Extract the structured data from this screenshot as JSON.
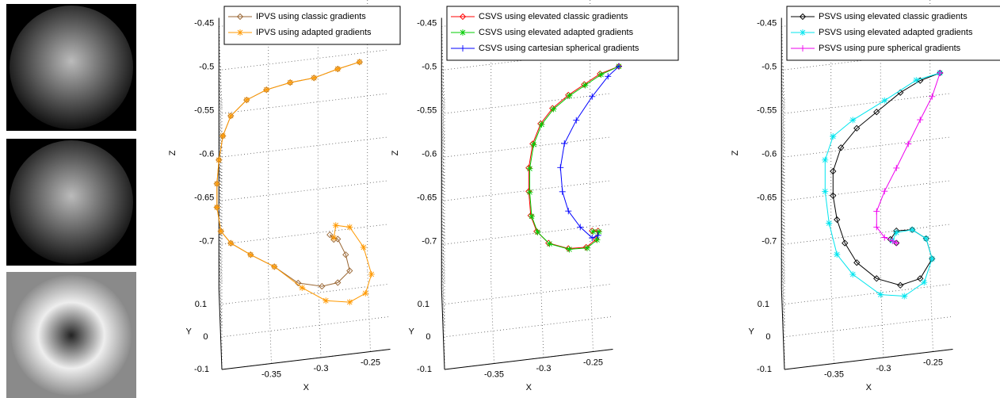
{
  "chart_data": [
    {
      "type": "line3d",
      "xlabel": "X",
      "ylabel": "Y",
      "zlabel": "Z",
      "xlim": [
        -0.4,
        -0.23
      ],
      "ylim": [
        -0.1,
        0.15
      ],
      "zlim": [
        -0.75,
        -0.44
      ],
      "xticks": [
        -0.35,
        -0.3,
        -0.25
      ],
      "yticks": [
        -0.1,
        0,
        0.1
      ],
      "zticks": [
        -0.7,
        -0.65,
        -0.6,
        -0.55,
        -0.5,
        -0.45
      ],
      "grid": true,
      "legend": "top-left",
      "series": [
        {
          "name": "IPVS using classic gradients",
          "color": "#996633",
          "marker": "diamond",
          "x": [
            -0.258,
            -0.28,
            -0.304,
            -0.328,
            -0.352,
            -0.372,
            -0.388,
            -0.396,
            -0.4,
            -0.402,
            -0.402,
            -0.398,
            -0.388,
            -0.368,
            -0.344,
            -0.32,
            -0.296,
            -0.28,
            -0.268,
            -0.272,
            -0.28,
            -0.288,
            -0.284
          ],
          "z": [
            -0.51,
            -0.515,
            -0.522,
            -0.524,
            -0.529,
            -0.538,
            -0.554,
            -0.576,
            -0.603,
            -0.63,
            -0.657,
            -0.685,
            -0.7,
            -0.716,
            -0.733,
            -0.755,
            -0.762,
            -0.76,
            -0.748,
            -0.729,
            -0.71,
            -0.704,
            -0.71
          ]
        },
        {
          "name": "IPVS using adapted gradients",
          "color": "#ff9900",
          "marker": "star",
          "x": [
            -0.258,
            -0.28,
            -0.304,
            -0.328,
            -0.352,
            -0.372,
            -0.388,
            -0.396,
            -0.4,
            -0.402,
            -0.402,
            -0.398,
            -0.388,
            -0.368,
            -0.344,
            -0.316,
            -0.292,
            -0.268,
            -0.252,
            -0.246,
            -0.254,
            -0.268,
            -0.282,
            -0.284
          ],
          "z": [
            -0.51,
            -0.515,
            -0.522,
            -0.524,
            -0.529,
            -0.538,
            -0.554,
            -0.576,
            -0.603,
            -0.63,
            -0.657,
            -0.685,
            -0.7,
            -0.716,
            -0.733,
            -0.761,
            -0.779,
            -0.784,
            -0.776,
            -0.755,
            -0.723,
            -0.698,
            -0.694,
            -0.708
          ]
        }
      ]
    },
    {
      "type": "line3d",
      "xlabel": "X",
      "ylabel": "Y",
      "zlabel": "Z",
      "xlim": [
        -0.4,
        -0.23
      ],
      "ylim": [
        -0.1,
        0.15
      ],
      "zlim": [
        -0.75,
        -0.44
      ],
      "xticks": [
        -0.35,
        -0.3,
        -0.25
      ],
      "yticks": [
        -0.1,
        0,
        0.1
      ],
      "zticks": [
        -0.7,
        -0.65,
        -0.6,
        -0.55,
        -0.5,
        -0.45
      ],
      "grid": true,
      "legend": "top-left",
      "series": [
        {
          "name": "CSVS using elevated classic gradients",
          "color": "#ff0000",
          "marker": "diamond",
          "x": [
            -0.221,
            -0.24,
            -0.256,
            -0.272,
            -0.288,
            -0.3,
            -0.308,
            -0.312,
            -0.312,
            -0.31,
            -0.304,
            -0.292,
            -0.272,
            -0.254,
            -0.244,
            -0.242,
            -0.248
          ],
          "z": [
            -0.52,
            -0.526,
            -0.536,
            -0.546,
            -0.559,
            -0.575,
            -0.597,
            -0.624,
            -0.651,
            -0.679,
            -0.698,
            -0.713,
            -0.722,
            -0.723,
            -0.715,
            -0.706,
            -0.705
          ]
        },
        {
          "name": "CSVS using elevated adapted gradients",
          "color": "#00cc00",
          "marker": "star",
          "x": [
            -0.221,
            -0.239,
            -0.255,
            -0.271,
            -0.287,
            -0.299,
            -0.307,
            -0.311,
            -0.311,
            -0.309,
            -0.303,
            -0.291,
            -0.271,
            -0.253,
            -0.243,
            -0.241,
            -0.247
          ],
          "z": [
            -0.52,
            -0.527,
            -0.537,
            -0.547,
            -0.56,
            -0.576,
            -0.598,
            -0.625,
            -0.652,
            -0.68,
            -0.699,
            -0.714,
            -0.723,
            -0.724,
            -0.716,
            -0.707,
            -0.706
          ]
        },
        {
          "name": "CSVS using cartesian spherical gradients",
          "color": "#0000ff",
          "marker": "plus",
          "x": [
            -0.221,
            -0.232,
            -0.248,
            -0.264,
            -0.276,
            -0.28,
            -0.278,
            -0.272,
            -0.26,
            -0.248,
            -0.242
          ],
          "z": [
            -0.52,
            -0.53,
            -0.551,
            -0.576,
            -0.601,
            -0.628,
            -0.656,
            -0.679,
            -0.699,
            -0.713,
            -0.711
          ]
        }
      ]
    },
    {
      "type": "line3d",
      "xlabel": "X",
      "ylabel": "Y",
      "zlabel": "Z",
      "xlim": [
        -0.4,
        -0.23
      ],
      "ylim": [
        -0.1,
        0.15
      ],
      "zlim": [
        -0.75,
        -0.44
      ],
      "xticks": [
        -0.35,
        -0.3,
        -0.25
      ],
      "yticks": [
        -0.1,
        0,
        0.1
      ],
      "zticks": [
        -0.7,
        -0.65,
        -0.6,
        -0.55,
        -0.5,
        -0.45
      ],
      "grid": true,
      "legend": "top-left",
      "series": [
        {
          "name": "PSVS using elevated classic gradients",
          "color": "#000000",
          "marker": "diamond",
          "x": [
            -0.24,
            -0.26,
            -0.28,
            -0.304,
            -0.324,
            -0.34,
            -0.348,
            -0.348,
            -0.344,
            -0.336,
            -0.324,
            -0.304,
            -0.28,
            -0.26,
            -0.248,
            -0.254,
            -0.268,
            -0.284,
            -0.29,
            -0.284
          ],
          "z": [
            -0.525,
            -0.531,
            -0.542,
            -0.561,
            -0.577,
            -0.597,
            -0.623,
            -0.651,
            -0.679,
            -0.707,
            -0.731,
            -0.752,
            -0.763,
            -0.758,
            -0.737,
            -0.713,
            -0.701,
            -0.7,
            -0.709,
            -0.714
          ]
        },
        {
          "name": "PSVS using elevated adapted gradients",
          "color": "#00e5ee",
          "marker": "star",
          "x": [
            -0.24,
            -0.264,
            -0.296,
            -0.328,
            -0.348,
            -0.356,
            -0.356,
            -0.352,
            -0.344,
            -0.328,
            -0.3,
            -0.276,
            -0.256,
            -0.248,
            -0.254,
            -0.268,
            -0.284,
            -0.288
          ],
          "z": [
            -0.525,
            -0.53,
            -0.549,
            -0.567,
            -0.583,
            -0.609,
            -0.645,
            -0.682,
            -0.719,
            -0.744,
            -0.771,
            -0.776,
            -0.763,
            -0.737,
            -0.713,
            -0.701,
            -0.702,
            -0.711
          ]
        },
        {
          "name": "PSVS using pure spherical gradients",
          "color": "#ee00ee",
          "marker": "plus",
          "x": [
            -0.24,
            -0.248,
            -0.26,
            -0.272,
            -0.284,
            -0.296,
            -0.304,
            -0.304,
            -0.296,
            -0.288,
            -0.284
          ],
          "z": [
            -0.525,
            -0.551,
            -0.576,
            -0.602,
            -0.628,
            -0.653,
            -0.675,
            -0.693,
            -0.706,
            -0.711,
            -0.714
          ]
        }
      ]
    }
  ]
}
